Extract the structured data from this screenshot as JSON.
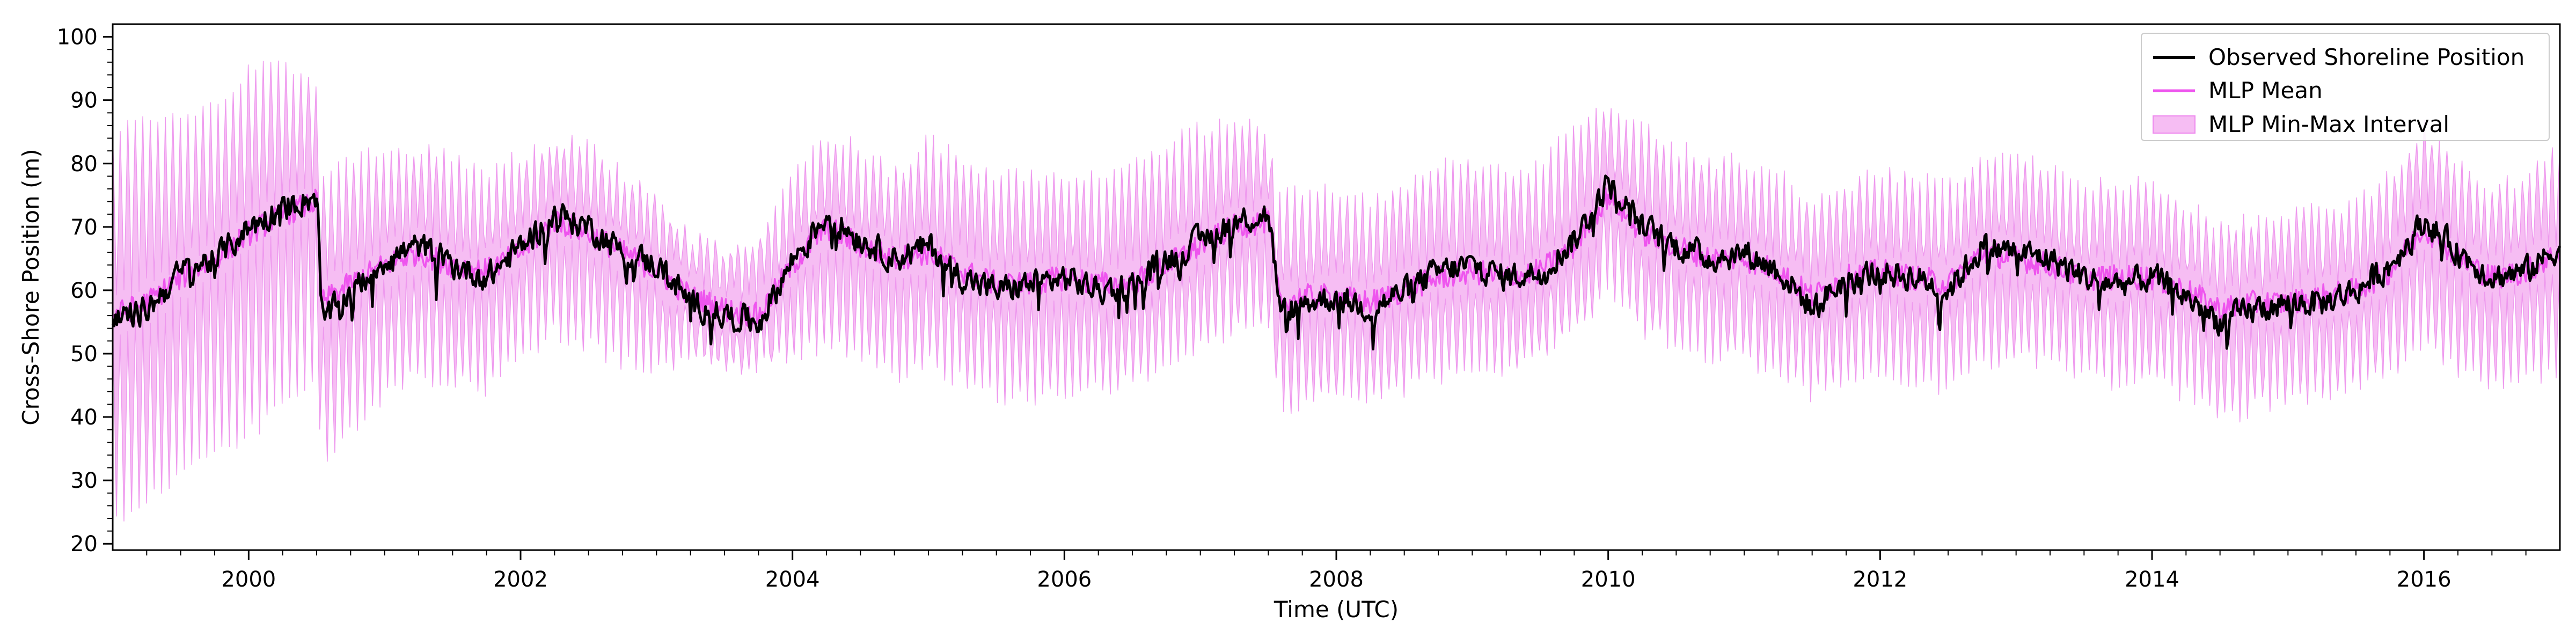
{
  "chart_data": {
    "type": "line",
    "xlabel": "Time (UTC)",
    "ylabel": "Cross-Shore Position (m)",
    "xlim": [
      "1999-01-01",
      "2017-01-01"
    ],
    "ylim": [
      19,
      102
    ],
    "x_ticks": [
      "2000",
      "2002",
      "2004",
      "2006",
      "2008",
      "2010",
      "2012",
      "2014",
      "2016"
    ],
    "y_ticks": [
      20,
      30,
      40,
      50,
      60,
      70,
      80,
      90,
      100
    ],
    "grid": false,
    "legend_position": "top-right",
    "colors": {
      "observed": "#000000",
      "mean": "#ee55ee",
      "band": "#f6bdf3"
    },
    "series": [
      {
        "name": "Observed Shoreline Position",
        "kind": "line",
        "x": [
          "1999-01-01",
          "1999-04-01",
          "1999-07-01",
          "1999-10-01",
          "2000-01-01",
          "2000-04-01",
          "2000-07-01",
          "2000-07-15",
          "2000-10-01",
          "2001-01-01",
          "2001-04-01",
          "2001-07-01",
          "2001-10-01",
          "2002-01-01",
          "2002-04-01",
          "2002-07-01",
          "2002-10-01",
          "2003-01-01",
          "2003-04-01",
          "2003-07-01",
          "2003-10-01",
          "2004-01-01",
          "2004-04-01",
          "2004-07-01",
          "2004-10-01",
          "2005-01-01",
          "2005-04-01",
          "2005-07-01",
          "2005-10-01",
          "2006-01-01",
          "2006-04-01",
          "2006-07-01",
          "2006-10-01",
          "2007-01-01",
          "2007-04-01",
          "2007-07-01",
          "2007-08-01",
          "2007-10-01",
          "2008-01-01",
          "2008-04-01",
          "2008-07-01",
          "2008-10-01",
          "2009-01-01",
          "2009-04-01",
          "2009-07-01",
          "2009-10-01",
          "2010-01-01",
          "2010-04-01",
          "2010-07-01",
          "2010-10-01",
          "2011-01-01",
          "2011-04-01",
          "2011-07-01",
          "2011-10-01",
          "2012-01-01",
          "2012-04-01",
          "2012-07-01",
          "2012-10-01",
          "2013-01-01",
          "2013-04-01",
          "2013-07-01",
          "2013-10-01",
          "2014-01-01",
          "2014-04-01",
          "2014-07-01",
          "2014-10-01",
          "2015-01-01",
          "2015-04-01",
          "2015-07-01",
          "2015-10-01",
          "2016-01-01",
          "2016-04-01",
          "2016-07-01",
          "2016-10-01",
          "2017-01-01"
        ],
        "values": [
          55,
          57,
          63,
          65,
          70,
          73,
          75,
          55,
          60,
          65,
          67,
          64,
          62,
          67,
          72,
          70,
          66,
          64,
          58,
          56,
          55,
          65,
          72,
          68,
          65,
          67,
          62,
          60,
          61,
          62,
          60,
          61,
          65,
          68,
          71,
          72,
          56,
          58,
          59,
          57,
          60,
          63,
          64,
          62,
          63,
          68,
          77,
          70,
          67,
          65,
          66,
          63,
          57,
          62,
          63,
          62,
          60,
          67,
          66,
          65,
          62,
          61,
          62,
          59,
          55,
          57,
          58,
          58,
          60,
          64,
          71,
          66,
          62,
          63,
          67
        ]
      },
      {
        "name": "MLP Mean",
        "kind": "line",
        "x": [
          "1999-01-01",
          "1999-04-01",
          "1999-07-01",
          "1999-10-01",
          "2000-01-01",
          "2000-04-01",
          "2000-07-01",
          "2000-07-15",
          "2000-10-01",
          "2001-01-01",
          "2001-04-01",
          "2001-07-01",
          "2001-10-01",
          "2002-01-01",
          "2002-04-01",
          "2002-07-01",
          "2002-10-01",
          "2003-01-01",
          "2003-04-01",
          "2003-07-01",
          "2003-10-01",
          "2004-01-01",
          "2004-04-01",
          "2004-07-01",
          "2004-10-01",
          "2005-01-01",
          "2005-04-01",
          "2005-07-01",
          "2005-10-01",
          "2006-01-01",
          "2006-04-01",
          "2006-07-01",
          "2006-10-01",
          "2007-01-01",
          "2007-04-01",
          "2007-07-01",
          "2007-08-01",
          "2007-10-01",
          "2008-01-01",
          "2008-04-01",
          "2008-07-01",
          "2008-10-01",
          "2009-01-01",
          "2009-04-01",
          "2009-07-01",
          "2009-10-01",
          "2010-01-01",
          "2010-04-01",
          "2010-07-01",
          "2010-10-01",
          "2011-01-01",
          "2011-04-01",
          "2011-07-01",
          "2011-10-01",
          "2012-01-01",
          "2012-04-01",
          "2012-07-01",
          "2012-10-01",
          "2013-01-01",
          "2013-04-01",
          "2013-07-01",
          "2013-10-01",
          "2014-01-01",
          "2014-04-01",
          "2014-07-01",
          "2014-10-01",
          "2015-01-01",
          "2015-04-01",
          "2015-07-01",
          "2015-10-01",
          "2016-01-01",
          "2016-04-01",
          "2016-07-01",
          "2016-10-01",
          "2017-01-01"
        ],
        "values": [
          56,
          58,
          62,
          65,
          69,
          72,
          74,
          58,
          61,
          64,
          66,
          64,
          63,
          66,
          71,
          69,
          66,
          63,
          59,
          57,
          56,
          64,
          70,
          67,
          65,
          66,
          63,
          61,
          61,
          62,
          61,
          61,
          64,
          67,
          70,
          71,
          58,
          59,
          59,
          58,
          60,
          62,
          63,
          62,
          63,
          67,
          75,
          69,
          67,
          65,
          65,
          63,
          59,
          62,
          63,
          62,
          61,
          66,
          65,
          64,
          62,
          62,
          62,
          60,
          57,
          58,
          58,
          59,
          60,
          63,
          70,
          65,
          62,
          63,
          66
        ]
      },
      {
        "name": "MLP Min-Max Interval",
        "kind": "band",
        "x": [
          "1999-01-01",
          "1999-04-01",
          "1999-07-01",
          "1999-10-01",
          "2000-01-01",
          "2000-04-01",
          "2000-07-01",
          "2000-07-15",
          "2000-10-01",
          "2001-01-01",
          "2001-04-01",
          "2001-07-01",
          "2001-10-01",
          "2002-01-01",
          "2002-04-01",
          "2002-07-01",
          "2002-10-01",
          "2003-01-01",
          "2003-04-01",
          "2003-07-01",
          "2003-10-01",
          "2004-01-01",
          "2004-04-01",
          "2004-07-01",
          "2004-10-01",
          "2005-01-01",
          "2005-04-01",
          "2005-07-01",
          "2005-10-01",
          "2006-01-01",
          "2006-04-01",
          "2006-07-01",
          "2006-10-01",
          "2007-01-01",
          "2007-04-01",
          "2007-07-01",
          "2007-08-01",
          "2007-10-01",
          "2008-01-01",
          "2008-04-01",
          "2008-07-01",
          "2008-10-01",
          "2009-01-01",
          "2009-04-01",
          "2009-07-01",
          "2009-10-01",
          "2010-01-01",
          "2010-04-01",
          "2010-07-01",
          "2010-10-01",
          "2011-01-01",
          "2011-04-01",
          "2011-07-01",
          "2011-10-01",
          "2012-01-01",
          "2012-04-01",
          "2012-07-01",
          "2012-10-01",
          "2013-01-01",
          "2013-04-01",
          "2013-07-01",
          "2013-10-01",
          "2014-01-01",
          "2014-04-01",
          "2014-07-01",
          "2014-10-01",
          "2015-01-01",
          "2015-04-01",
          "2015-07-01",
          "2015-10-01",
          "2016-01-01",
          "2016-04-01",
          "2016-07-01",
          "2016-10-01",
          "2017-01-01"
        ],
        "lower": [
          22,
          25,
          30,
          32,
          36,
          40,
          45,
          29,
          36,
          42,
          45,
          44,
          43,
          48,
          52,
          50,
          47,
          46,
          48,
          46,
          47,
          48,
          50,
          48,
          45,
          47,
          44,
          42,
          41,
          42,
          43,
          44,
          47,
          50,
          52,
          52,
          40,
          41,
          41,
          42,
          43,
          45,
          46,
          46,
          48,
          52,
          58,
          52,
          50,
          48,
          48,
          45,
          42,
          44,
          45,
          44,
          43,
          47,
          48,
          47,
          45,
          44,
          44,
          42,
          38,
          40,
          41,
          42,
          43,
          45,
          50,
          46,
          43,
          44,
          46
        ],
        "upper": [
          87,
          88,
          89,
          90,
          96,
          97,
          95,
          80,
          82,
          84,
          84,
          82,
          80,
          83,
          85,
          84,
          80,
          76,
          70,
          68,
          70,
          80,
          85,
          84,
          80,
          85,
          82,
          80,
          79,
          80,
          79,
          81,
          85,
          87,
          88,
          87,
          76,
          77,
          78,
          75,
          78,
          82,
          82,
          80,
          82,
          87,
          91,
          87,
          84,
          82,
          82,
          80,
          75,
          78,
          80,
          79,
          78,
          83,
          82,
          81,
          78,
          78,
          78,
          75,
          72,
          73,
          74,
          74,
          75,
          80,
          87,
          82,
          78,
          79,
          84
        ]
      }
    ]
  }
}
